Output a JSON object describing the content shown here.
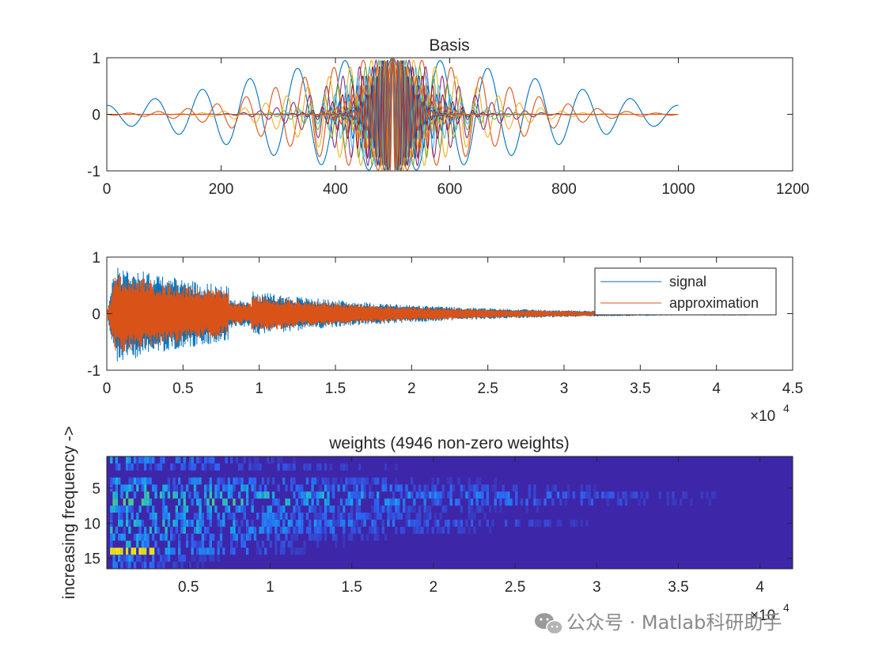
{
  "chart_data": [
    {
      "type": "line",
      "title": "Basis",
      "xlabel": "",
      "ylabel": "",
      "xlim": [
        0,
        1200
      ],
      "ylim": [
        -1,
        1
      ],
      "xticks": [
        0,
        200,
        400,
        600,
        800,
        1000,
        1200
      ],
      "yticks": [
        -1,
        0,
        1
      ],
      "x_range_of_data": [
        0,
        1000
      ],
      "center": 500,
      "series_count": 16,
      "colors": [
        "#0072BD",
        "#D95319",
        "#EDB120",
        "#7E2F8E",
        "#77AC30",
        "#4DBEEE",
        "#A2142F"
      ]
    },
    {
      "type": "line",
      "title": "",
      "xlabel": "",
      "ylabel": "",
      "xlim": [
        0,
        45000
      ],
      "ylim": [
        -1,
        1
      ],
      "xticks": [
        0,
        0.5,
        1,
        1.5,
        2,
        2.5,
        3,
        3.5,
        4,
        4.5
      ],
      "xtick_labels": [
        "0",
        "0.5",
        "1",
        "1.5",
        "2",
        "2.5",
        "3",
        "3.5",
        "4",
        "4.5"
      ],
      "x_exponent": "×10",
      "x_exponent_power": "4",
      "yticks": [
        -1,
        0,
        1
      ],
      "signal_length": 42000,
      "series": [
        {
          "name": "signal",
          "color": "#0072BD"
        },
        {
          "name": "approximation",
          "color": "#D95319"
        }
      ],
      "legend_location": "northeast"
    },
    {
      "type": "heatmap",
      "title": "weights (4946 non-zero weights)",
      "xlabel": "",
      "ylabel": "increasing frequency ->",
      "xlim": [
        1,
        42000
      ],
      "ylim": [
        0.5,
        16.5
      ],
      "xticks": [
        0.5,
        1,
        1.5,
        2,
        2.5,
        3,
        3.5,
        4
      ],
      "xtick_labels": [
        "0.5",
        "1",
        "1.5",
        "2",
        "2.5",
        "3",
        "3.5",
        "4"
      ],
      "x_exponent": "×10",
      "x_exponent_power": "4",
      "yticks": [
        5,
        10,
        15
      ],
      "rows": 16,
      "non_zero_weights": 4946,
      "background_color": "#3E26A8"
    }
  ],
  "watermark": {
    "icon": "wechat-icon",
    "text": "公众号 · Matlab科研助手"
  }
}
